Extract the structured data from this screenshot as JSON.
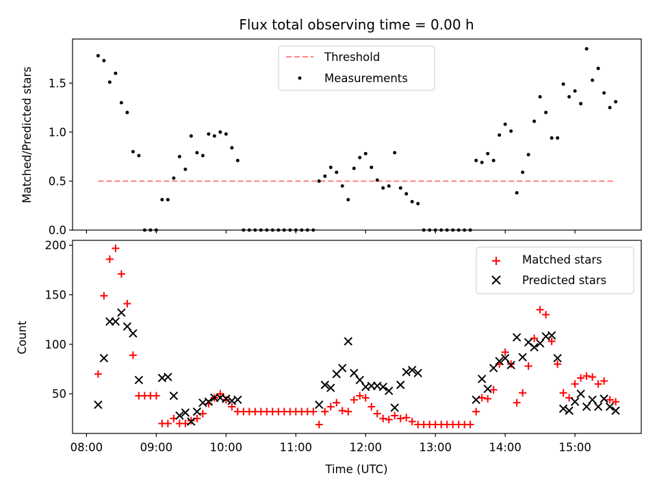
{
  "chart_data": [
    {
      "type": "scatter",
      "title": "Flux total observing time = 0.00 h",
      "xlabel": "",
      "ylabel": "Matched/Predicted stars",
      "ylim": [
        0,
        1.95
      ],
      "xlim_hours": [
        7.8,
        15.95
      ],
      "yticks": [
        0.0,
        0.5,
        1.0,
        1.5
      ],
      "ytick_labels": [
        "0.0",
        "0.5",
        "1.0",
        "1.5"
      ],
      "grid": false,
      "legend": {
        "placement": "top-center",
        "entries": [
          {
            "label": "Threshold",
            "marker": "dashed-line",
            "color": "#ff7f7f"
          },
          {
            "label": "Measurements",
            "marker": "dot",
            "color": "#000000"
          }
        ]
      },
      "threshold": {
        "name": "Threshold",
        "value": 0.5,
        "x": [
          "08:10",
          "15:35"
        ],
        "color": "#ff7f7f"
      },
      "series": [
        {
          "name": "Measurements",
          "color": "#000000",
          "marker": "dot",
          "points": [
            [
              "08:10",
              1.78
            ],
            [
              "08:15",
              1.73
            ],
            [
              "08:20",
              1.51
            ],
            [
              "08:25",
              1.6
            ],
            [
              "08:30",
              1.3
            ],
            [
              "08:35",
              1.2
            ],
            [
              "08:40",
              0.8
            ],
            [
              "08:45",
              0.76
            ],
            [
              "08:50",
              0.0
            ],
            [
              "08:55",
              0.0
            ],
            [
              "09:00",
              0.0
            ],
            [
              "09:05",
              0.31
            ],
            [
              "09:10",
              0.31
            ],
            [
              "09:15",
              0.53
            ],
            [
              "09:20",
              0.75
            ],
            [
              "09:25",
              0.62
            ],
            [
              "09:30",
              0.96
            ],
            [
              "09:35",
              0.79
            ],
            [
              "09:40",
              0.76
            ],
            [
              "09:45",
              0.98
            ],
            [
              "09:50",
              0.96
            ],
            [
              "09:55",
              1.0
            ],
            [
              "10:00",
              0.98
            ],
            [
              "10:05",
              0.84
            ],
            [
              "10:10",
              0.71
            ],
            [
              "10:15",
              0.0
            ],
            [
              "10:20",
              0.0
            ],
            [
              "10:25",
              0.0
            ],
            [
              "10:30",
              0.0
            ],
            [
              "10:35",
              0.0
            ],
            [
              "10:40",
              0.0
            ],
            [
              "10:45",
              0.0
            ],
            [
              "10:50",
              0.0
            ],
            [
              "10:55",
              0.0
            ],
            [
              "11:00",
              0.0
            ],
            [
              "11:05",
              0.0
            ],
            [
              "11:10",
              0.0
            ],
            [
              "11:15",
              0.0
            ],
            [
              "11:20",
              0.5
            ],
            [
              "11:25",
              0.55
            ],
            [
              "11:30",
              0.64
            ],
            [
              "11:35",
              0.59
            ],
            [
              "11:40",
              0.45
            ],
            [
              "11:45",
              0.31
            ],
            [
              "11:50",
              0.63
            ],
            [
              "11:55",
              0.74
            ],
            [
              "12:00",
              0.78
            ],
            [
              "12:05",
              0.64
            ],
            [
              "12:10",
              0.51
            ],
            [
              "12:15",
              0.43
            ],
            [
              "12:20",
              0.45
            ],
            [
              "12:25",
              0.79
            ],
            [
              "12:30",
              0.43
            ],
            [
              "12:35",
              0.37
            ],
            [
              "12:40",
              0.29
            ],
            [
              "12:45",
              0.27
            ],
            [
              "12:50",
              0.0
            ],
            [
              "12:55",
              0.0
            ],
            [
              "13:00",
              0.0
            ],
            [
              "13:05",
              0.0
            ],
            [
              "13:10",
              0.0
            ],
            [
              "13:15",
              0.0
            ],
            [
              "13:20",
              0.0
            ],
            [
              "13:25",
              0.0
            ],
            [
              "13:30",
              0.0
            ],
            [
              "13:35",
              0.71
            ],
            [
              "13:40",
              0.69
            ],
            [
              "13:45",
              0.78
            ],
            [
              "13:50",
              0.71
            ],
            [
              "13:55",
              0.97
            ],
            [
              "14:00",
              1.08
            ],
            [
              "14:05",
              1.01
            ],
            [
              "14:10",
              0.38
            ],
            [
              "14:15",
              0.59
            ],
            [
              "14:20",
              0.77
            ],
            [
              "14:25",
              1.11
            ],
            [
              "14:30",
              1.36
            ],
            [
              "14:35",
              1.2
            ],
            [
              "14:40",
              0.94
            ],
            [
              "14:45",
              0.94
            ],
            [
              "14:50",
              1.49
            ],
            [
              "14:55",
              1.36
            ],
            [
              "15:00",
              1.42
            ],
            [
              "15:05",
              1.29
            ],
            [
              "15:10",
              1.85
            ],
            [
              "15:15",
              1.53
            ],
            [
              "15:20",
              1.65
            ],
            [
              "15:25",
              1.4
            ],
            [
              "15:30",
              1.25
            ],
            [
              "15:35",
              1.31
            ]
          ]
        }
      ]
    },
    {
      "type": "scatter",
      "title": "",
      "xlabel": "Time (UTC)",
      "ylabel": "Count",
      "ylim": [
        10,
        205
      ],
      "xlim_hours": [
        7.8,
        15.95
      ],
      "yticks": [
        50,
        100,
        150,
        200
      ],
      "ytick_labels": [
        "50",
        "100",
        "150",
        "200"
      ],
      "xtick_labels": [
        "08:00",
        "09:00",
        "10:00",
        "11:00",
        "12:00",
        "13:00",
        "14:00",
        "15:00"
      ],
      "grid": false,
      "legend": {
        "placement": "top-right",
        "entries": [
          {
            "label": "Matched stars",
            "marker": "plus",
            "color": "#ff0000"
          },
          {
            "label": "Predicted stars",
            "marker": "x",
            "color": "#000000"
          }
        ]
      },
      "series": [
        {
          "name": "Matched stars",
          "color": "#ff0000",
          "marker": "plus",
          "points": [
            [
              "08:10",
              70
            ],
            [
              "08:15",
              149
            ],
            [
              "08:20",
              186
            ],
            [
              "08:25",
              197
            ],
            [
              "08:30",
              171
            ],
            [
              "08:35",
              141
            ],
            [
              "08:40",
              89
            ],
            [
              "08:45",
              48
            ],
            [
              "08:50",
              48
            ],
            [
              "08:55",
              48
            ],
            [
              "09:00",
              48
            ],
            [
              "09:05",
              20
            ],
            [
              "09:10",
              20
            ],
            [
              "09:15",
              25
            ],
            [
              "09:20",
              20
            ],
            [
              "09:25",
              20
            ],
            [
              "09:30",
              23
            ],
            [
              "09:35",
              25
            ],
            [
              "09:40",
              30
            ],
            [
              "09:45",
              40
            ],
            [
              "09:50",
              46
            ],
            [
              "09:55",
              50
            ],
            [
              "10:00",
              44
            ],
            [
              "10:05",
              37
            ],
            [
              "10:10",
              32
            ],
            [
              "10:15",
              32
            ],
            [
              "10:20",
              32
            ],
            [
              "10:25",
              32
            ],
            [
              "10:30",
              32
            ],
            [
              "10:35",
              32
            ],
            [
              "10:40",
              32
            ],
            [
              "10:45",
              32
            ],
            [
              "10:50",
              32
            ],
            [
              "10:55",
              32
            ],
            [
              "11:00",
              32
            ],
            [
              "11:05",
              32
            ],
            [
              "11:10",
              32
            ],
            [
              "11:15",
              32
            ],
            [
              "11:20",
              19
            ],
            [
              "11:25",
              32
            ],
            [
              "11:30",
              37
            ],
            [
              "11:35",
              41
            ],
            [
              "11:40",
              33
            ],
            [
              "11:45",
              32
            ],
            [
              "11:50",
              44
            ],
            [
              "11:55",
              48
            ],
            [
              "12:00",
              46
            ],
            [
              "12:05",
              37
            ],
            [
              "12:10",
              30
            ],
            [
              "12:15",
              25
            ],
            [
              "12:20",
              24
            ],
            [
              "12:25",
              28
            ],
            [
              "12:30",
              25
            ],
            [
              "12:35",
              26
            ],
            [
              "12:40",
              22
            ],
            [
              "12:45",
              19
            ],
            [
              "12:50",
              19
            ],
            [
              "12:55",
              19
            ],
            [
              "13:00",
              19
            ],
            [
              "13:05",
              19
            ],
            [
              "13:10",
              19
            ],
            [
              "13:15",
              19
            ],
            [
              "13:20",
              19
            ],
            [
              "13:25",
              19
            ],
            [
              "13:30",
              19
            ],
            [
              "13:35",
              32
            ],
            [
              "13:40",
              46
            ],
            [
              "13:45",
              45
            ],
            [
              "13:50",
              54
            ],
            [
              "13:55",
              80
            ],
            [
              "14:00",
              92
            ],
            [
              "14:05",
              80
            ],
            [
              "14:10",
              41
            ],
            [
              "14:15",
              51
            ],
            [
              "14:20",
              78
            ],
            [
              "14:25",
              106
            ],
            [
              "14:30",
              135
            ],
            [
              "14:35",
              130
            ],
            [
              "14:40",
              103
            ],
            [
              "14:45",
              80
            ],
            [
              "14:50",
              51
            ],
            [
              "14:55",
              46
            ],
            [
              "15:00",
              60
            ],
            [
              "15:05",
              66
            ],
            [
              "15:10",
              68
            ],
            [
              "15:15",
              67
            ],
            [
              "15:20",
              60
            ],
            [
              "15:25",
              63
            ],
            [
              "15:30",
              44
            ],
            [
              "15:35",
              42
            ]
          ]
        },
        {
          "name": "Predicted stars",
          "color": "#000000",
          "marker": "x",
          "points": [
            [
              "08:10",
              39
            ],
            [
              "08:15",
              86
            ],
            [
              "08:20",
              123
            ],
            [
              "08:25",
              123
            ],
            [
              "08:30",
              132
            ],
            [
              "08:35",
              118
            ],
            [
              "08:40",
              111
            ],
            [
              "08:45",
              64
            ],
            [
              "09:05",
              66
            ],
            [
              "09:10",
              67
            ],
            [
              "09:15",
              48
            ],
            [
              "09:20",
              28
            ],
            [
              "09:25",
              31
            ],
            [
              "09:30",
              22
            ],
            [
              "09:35",
              32
            ],
            [
              "09:40",
              41
            ],
            [
              "09:45",
              42
            ],
            [
              "09:50",
              46
            ],
            [
              "09:55",
              46
            ],
            [
              "10:00",
              45
            ],
            [
              "10:05",
              43
            ],
            [
              "10:10",
              44
            ],
            [
              "11:20",
              39
            ],
            [
              "11:25",
              59
            ],
            [
              "11:30",
              56
            ],
            [
              "11:35",
              70
            ],
            [
              "11:40",
              76
            ],
            [
              "11:45",
              103
            ],
            [
              "11:50",
              71
            ],
            [
              "11:55",
              64
            ],
            [
              "12:00",
              57
            ],
            [
              "12:05",
              58
            ],
            [
              "12:10",
              58
            ],
            [
              "12:15",
              57
            ],
            [
              "12:20",
              53
            ],
            [
              "12:25",
              36
            ],
            [
              "12:30",
              59
            ],
            [
              "12:35",
              72
            ],
            [
              "12:40",
              74
            ],
            [
              "12:45",
              71
            ],
            [
              "13:35",
              44
            ],
            [
              "13:40",
              65
            ],
            [
              "13:45",
              55
            ],
            [
              "13:50",
              76
            ],
            [
              "13:55",
              83
            ],
            [
              "14:00",
              86
            ],
            [
              "14:05",
              79
            ],
            [
              "14:10",
              107
            ],
            [
              "14:15",
              87
            ],
            [
              "14:20",
              102
            ],
            [
              "14:25",
              97
            ],
            [
              "14:30",
              101
            ],
            [
              "14:35",
              108
            ],
            [
              "14:40",
              109
            ],
            [
              "14:45",
              86
            ],
            [
              "14:50",
              35
            ],
            [
              "14:55",
              33
            ],
            [
              "15:00",
              42
            ],
            [
              "15:05",
              50
            ],
            [
              "15:10",
              37
            ],
            [
              "15:15",
              44
            ],
            [
              "15:20",
              37
            ],
            [
              "15:25",
              45
            ],
            [
              "15:30",
              37
            ],
            [
              "15:35",
              33
            ]
          ]
        }
      ]
    }
  ]
}
